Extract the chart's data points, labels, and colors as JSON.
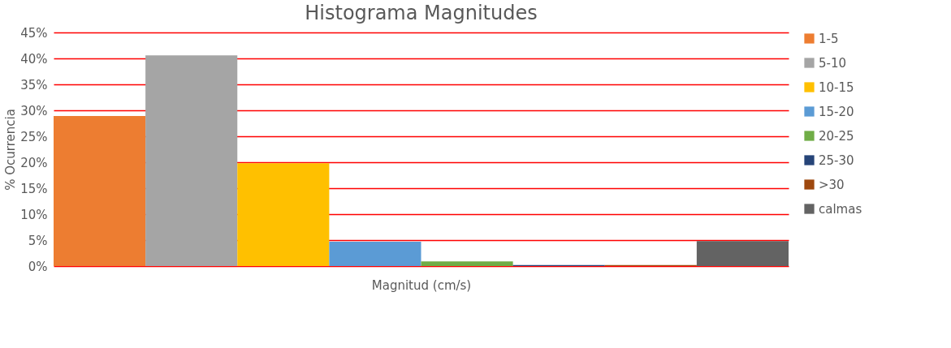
{
  "chart_data": {
    "type": "bar",
    "title": "Histograma Magnitudes",
    "xlabel": "Magnitud (cm/s)",
    "ylabel": "% Ocurrencia",
    "categories": [
      null
    ],
    "series": [
      {
        "name": "1-5",
        "color": "#ed7d31",
        "values": [
          28.9
        ]
      },
      {
        "name": "5-10",
        "color": "#a5a5a5",
        "values": [
          40.6
        ]
      },
      {
        "name": "10-15",
        "color": "#ffc000",
        "values": [
          19.8
        ]
      },
      {
        "name": "15-20",
        "color": "#5b9bd5",
        "values": [
          4.7
        ]
      },
      {
        "name": "20-25",
        "color": "#70ad47",
        "values": [
          0.9
        ]
      },
      {
        "name": "25-30",
        "color": "#264478",
        "values": [
          0.2
        ]
      },
      {
        "name": ">30",
        "color": "#9e480e",
        "values": [
          0.2
        ]
      },
      {
        "name": "calmas",
        "color": "#636363",
        "values": [
          4.8
        ]
      }
    ],
    "ylim": [
      0,
      45
    ],
    "yticks": [
      {
        "value": 0,
        "label": "0%"
      },
      {
        "value": 5,
        "label": "5%"
      },
      {
        "value": 10,
        "label": "10%"
      },
      {
        "value": 15,
        "label": "15%"
      },
      {
        "value": 20,
        "label": "20%"
      },
      {
        "value": 25,
        "label": "25%"
      },
      {
        "value": 30,
        "label": "30%"
      },
      {
        "value": 35,
        "label": "35%"
      },
      {
        "value": 40,
        "label": "40%"
      },
      {
        "value": 45,
        "label": "45%"
      }
    ],
    "grid": "y",
    "legend": "right"
  }
}
